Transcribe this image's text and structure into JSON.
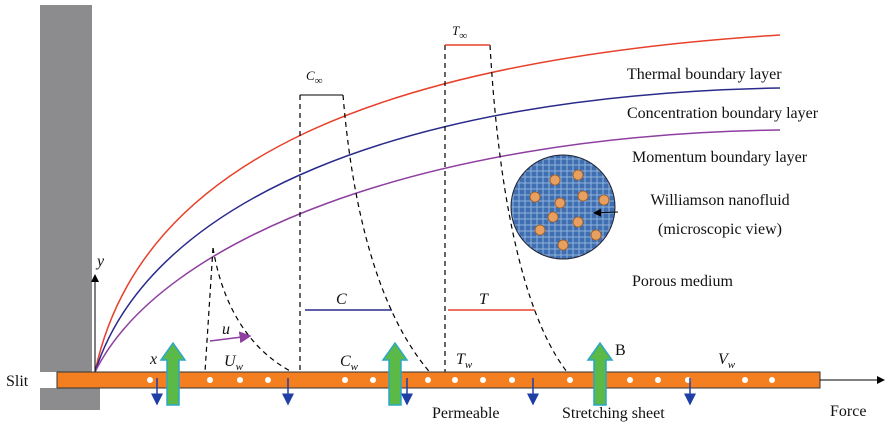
{
  "layers": {
    "thermal": "Thermal boundary layer",
    "concentration": "Concentration boundary layer",
    "momentum": "Momentum boundary layer"
  },
  "nanofluid": {
    "title": "Williamson nanofluid",
    "subtitle": "(microscopic view)"
  },
  "porous": "Porous medium",
  "slit": "Slit",
  "force": "Force",
  "permeable": "Permeable",
  "sheet": "Stretching sheet",
  "symbols": {
    "y": "y",
    "x": "x",
    "u": "u",
    "C": "C",
    "T": "T",
    "B": "B",
    "U_w": {
      "base": "U",
      "sub": "w"
    },
    "C_inf": {
      "base": "C",
      "sub": "∞"
    },
    "C_w": {
      "base": "C",
      "sub": "w"
    },
    "T_inf": {
      "base": "T",
      "sub": "∞"
    },
    "T_w": {
      "base": "T",
      "sub": "w"
    },
    "V_w": {
      "base": "V",
      "sub": "w"
    }
  }
}
